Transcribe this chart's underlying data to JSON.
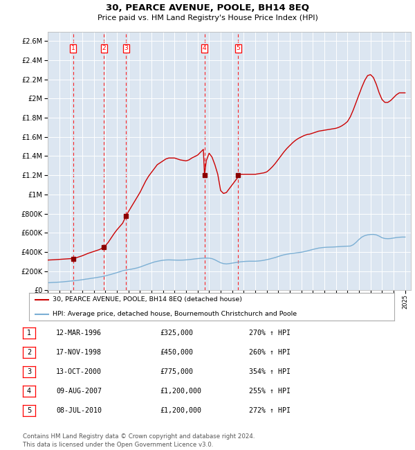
{
  "title": "30, PEARCE AVENUE, POOLE, BH14 8EQ",
  "subtitle": "Price paid vs. HM Land Registry's House Price Index (HPI)",
  "background_color": "#dce6f1",
  "hpi_line_color": "#7bafd4",
  "price_line_color": "#cc0000",
  "marker_color": "#8b0000",
  "ylim": [
    0,
    2700000
  ],
  "yticks": [
    0,
    200000,
    400000,
    600000,
    800000,
    1000000,
    1200000,
    1400000,
    1600000,
    1800000,
    2000000,
    2200000,
    2400000,
    2600000
  ],
  "xlim_start": 1994.0,
  "xlim_end": 2025.5,
  "sale_dates_x": [
    1996.19,
    1998.88,
    2000.79,
    2007.6,
    2010.52
  ],
  "sale_prices_y": [
    325000,
    450000,
    775000,
    1200000,
    1200000
  ],
  "sale_labels": [
    "1",
    "2",
    "3",
    "4",
    "5"
  ],
  "legend_entry1": "30, PEARCE AVENUE, POOLE, BH14 8EQ (detached house)",
  "legend_entry2": "HPI: Average price, detached house, Bournemouth Christchurch and Poole",
  "table_rows": [
    [
      "1",
      "12-MAR-1996",
      "£325,000",
      "270% ↑ HPI"
    ],
    [
      "2",
      "17-NOV-1998",
      "£450,000",
      "260% ↑ HPI"
    ],
    [
      "3",
      "13-OCT-2000",
      "£775,000",
      "354% ↑ HPI"
    ],
    [
      "4",
      "09-AUG-2007",
      "£1,200,000",
      "255% ↑ HPI"
    ],
    [
      "5",
      "08-JUL-2010",
      "£1,200,000",
      "272% ↑ HPI"
    ]
  ],
  "footer": "Contains HM Land Registry data © Crown copyright and database right 2024.\nThis data is licensed under the Open Government Licence v3.0.",
  "hpi_x": [
    1994.0,
    1994.25,
    1994.5,
    1994.75,
    1995.0,
    1995.25,
    1995.5,
    1995.75,
    1996.0,
    1996.25,
    1996.5,
    1996.75,
    1997.0,
    1997.25,
    1997.5,
    1997.75,
    1998.0,
    1998.25,
    1998.5,
    1998.75,
    1999.0,
    1999.25,
    1999.5,
    1999.75,
    2000.0,
    2000.25,
    2000.5,
    2000.75,
    2001.0,
    2001.25,
    2001.5,
    2001.75,
    2002.0,
    2002.25,
    2002.5,
    2002.75,
    2003.0,
    2003.25,
    2003.5,
    2003.75,
    2004.0,
    2004.25,
    2004.5,
    2004.75,
    2005.0,
    2005.25,
    2005.5,
    2005.75,
    2006.0,
    2006.25,
    2006.5,
    2006.75,
    2007.0,
    2007.25,
    2007.5,
    2007.75,
    2008.0,
    2008.25,
    2008.5,
    2008.75,
    2009.0,
    2009.25,
    2009.5,
    2009.75,
    2010.0,
    2010.25,
    2010.5,
    2010.75,
    2011.0,
    2011.25,
    2011.5,
    2011.75,
    2012.0,
    2012.25,
    2012.5,
    2012.75,
    2013.0,
    2013.25,
    2013.5,
    2013.75,
    2014.0,
    2014.25,
    2014.5,
    2014.75,
    2015.0,
    2015.25,
    2015.5,
    2015.75,
    2016.0,
    2016.25,
    2016.5,
    2016.75,
    2017.0,
    2017.25,
    2017.5,
    2017.75,
    2018.0,
    2018.25,
    2018.5,
    2018.75,
    2019.0,
    2019.25,
    2019.5,
    2019.75,
    2020.0,
    2020.25,
    2020.5,
    2020.75,
    2021.0,
    2021.25,
    2021.5,
    2021.75,
    2022.0,
    2022.25,
    2022.5,
    2022.75,
    2023.0,
    2023.25,
    2023.5,
    2023.75,
    2024.0,
    2024.25,
    2024.5,
    2024.75,
    2025.0
  ],
  "hpi_y": [
    78000,
    80000,
    82000,
    83000,
    85000,
    87000,
    90000,
    93000,
    96000,
    99000,
    102000,
    106000,
    110000,
    115000,
    119000,
    124000,
    128000,
    133000,
    138000,
    143000,
    150000,
    158000,
    166000,
    175000,
    184000,
    193000,
    203000,
    210000,
    215000,
    220000,
    226000,
    233000,
    242000,
    253000,
    264000,
    275000,
    285000,
    295000,
    302000,
    308000,
    313000,
    316000,
    317000,
    316000,
    315000,
    314000,
    314000,
    315000,
    317000,
    320000,
    323000,
    327000,
    330000,
    333000,
    335000,
    336000,
    335000,
    330000,
    318000,
    302000,
    287000,
    278000,
    275000,
    278000,
    283000,
    288000,
    293000,
    297000,
    300000,
    302000,
    303000,
    303000,
    303000,
    305000,
    308000,
    313000,
    319000,
    326000,
    334000,
    342000,
    352000,
    362000,
    370000,
    376000,
    381000,
    385000,
    389000,
    393000,
    397000,
    403000,
    410000,
    418000,
    426000,
    433000,
    440000,
    444000,
    447000,
    449000,
    450000,
    451000,
    453000,
    455000,
    457000,
    459000,
    460000,
    461000,
    475000,
    500000,
    530000,
    555000,
    570000,
    578000,
    582000,
    583000,
    578000,
    565000,
    548000,
    540000,
    538000,
    540000,
    545000,
    550000,
    553000,
    555000,
    555000
  ],
  "price_x": [
    1994.0,
    1994.5,
    1995.0,
    1995.5,
    1996.0,
    1996.19,
    1996.5,
    1997.0,
    1997.5,
    1998.0,
    1998.5,
    1998.88,
    1999.0,
    1999.25,
    1999.5,
    1999.75,
    2000.0,
    2000.5,
    2000.79,
    2001.0,
    2001.25,
    2001.5,
    2001.75,
    2002.0,
    2002.25,
    2002.5,
    2002.75,
    2003.0,
    2003.25,
    2003.5,
    2004.0,
    2004.25,
    2004.5,
    2005.0,
    2005.25,
    2005.5,
    2006.0,
    2006.25,
    2006.5,
    2007.0,
    2007.25,
    2007.5,
    2007.6,
    2007.75,
    2008.0,
    2008.25,
    2008.5,
    2008.75,
    2009.0,
    2009.25,
    2009.5,
    2009.75,
    2010.0,
    2010.25,
    2010.5,
    2010.52,
    2010.75,
    2011.0,
    2011.25,
    2011.5,
    2011.75,
    2012.0,
    2012.25,
    2012.5,
    2012.75,
    2013.0,
    2013.25,
    2013.5,
    2013.75,
    2014.0,
    2014.25,
    2014.5,
    2014.75,
    2015.0,
    2015.25,
    2015.5,
    2015.75,
    2016.0,
    2016.25,
    2016.5,
    2016.75,
    2017.0,
    2017.25,
    2017.5,
    2017.75,
    2018.0,
    2018.25,
    2018.5,
    2018.75,
    2019.0,
    2019.25,
    2019.5,
    2019.75,
    2020.0,
    2020.25,
    2020.5,
    2020.75,
    2021.0,
    2021.25,
    2021.5,
    2021.75,
    2022.0,
    2022.25,
    2022.5,
    2022.75,
    2023.0,
    2023.25,
    2023.5,
    2023.75,
    2024.0,
    2024.25,
    2024.5,
    2024.75,
    2025.0
  ],
  "price_y": [
    315000,
    318000,
    322000,
    326000,
    330000,
    325000,
    340000,
    360000,
    385000,
    405000,
    425000,
    450000,
    465000,
    500000,
    545000,
    590000,
    630000,
    700000,
    775000,
    820000,
    870000,
    920000,
    970000,
    1020000,
    1080000,
    1140000,
    1190000,
    1230000,
    1270000,
    1310000,
    1350000,
    1370000,
    1380000,
    1380000,
    1370000,
    1360000,
    1350000,
    1360000,
    1380000,
    1410000,
    1440000,
    1470000,
    1200000,
    1350000,
    1430000,
    1390000,
    1310000,
    1210000,
    1040000,
    1010000,
    1020000,
    1060000,
    1100000,
    1140000,
    1180000,
    1200000,
    1210000,
    1210000,
    1210000,
    1210000,
    1210000,
    1210000,
    1215000,
    1220000,
    1225000,
    1235000,
    1260000,
    1290000,
    1325000,
    1365000,
    1405000,
    1445000,
    1480000,
    1510000,
    1540000,
    1565000,
    1585000,
    1600000,
    1615000,
    1625000,
    1630000,
    1640000,
    1650000,
    1660000,
    1665000,
    1670000,
    1675000,
    1680000,
    1685000,
    1690000,
    1700000,
    1715000,
    1735000,
    1760000,
    1810000,
    1880000,
    1960000,
    2040000,
    2120000,
    2190000,
    2240000,
    2250000,
    2220000,
    2150000,
    2060000,
    1990000,
    1960000,
    1960000,
    1980000,
    2010000,
    2040000,
    2060000,
    2060000,
    2060000
  ]
}
